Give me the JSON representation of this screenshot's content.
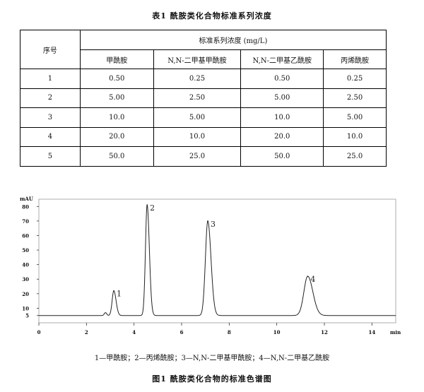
{
  "table": {
    "title": "表1   酰胺类化合物标准系列浓度",
    "group_header": "标准系列浓度 (mg/L)",
    "index_header": "序号",
    "columns": [
      "甲酰胺",
      "N,N-二甲基甲酰胺",
      "N,N-二甲基乙酰胺",
      "丙烯酰胺"
    ],
    "rows": [
      {
        "idx": "1",
        "cells": [
          "0.50",
          "0.25",
          "0.50",
          "0.25"
        ]
      },
      {
        "idx": "2",
        "cells": [
          "5.00",
          "2.50",
          "5.00",
          "2.50"
        ]
      },
      {
        "idx": "3",
        "cells": [
          "10.0",
          "5.00",
          "10.0",
          "5.00"
        ]
      },
      {
        "idx": "4",
        "cells": [
          "20.0",
          "10.0",
          "20.0",
          "10.0"
        ]
      },
      {
        "idx": "5",
        "cells": [
          "50.0",
          "25.0",
          "50.0",
          "25.0"
        ]
      }
    ]
  },
  "chart_data": {
    "type": "line",
    "title": "",
    "ylabel": "mAU",
    "xlabel": "min",
    "xlim": [
      0,
      15
    ],
    "ylim": [
      0,
      85
    ],
    "x_ticks": [
      "0",
      "2",
      "4",
      "6",
      "8",
      "10",
      "12",
      "14"
    ],
    "x_tick_values": [
      0,
      2,
      4,
      6,
      8,
      10,
      12,
      14
    ],
    "y_ticks": [
      "5",
      "10",
      "20",
      "30",
      "40",
      "50",
      "60",
      "70",
      "80"
    ],
    "y_tick_values": [
      5,
      10,
      20,
      30,
      40,
      50,
      60,
      70,
      80
    ],
    "baseline": 5,
    "peaks": [
      {
        "label": "1",
        "time": 3.15,
        "height": 22
      },
      {
        "label": "2",
        "time": 4.55,
        "height": 81
      },
      {
        "label": "3",
        "time": 7.1,
        "height": 70
      },
      {
        "label": "4",
        "time": 11.3,
        "height": 32
      }
    ],
    "minor_peaks": [
      {
        "time": 2.8,
        "height": 7
      }
    ]
  },
  "legend_text": "1—甲酰胺；2—丙烯酰胺；3—N,N-二甲基甲酰胺；4—N,N-二甲基乙酰胺",
  "figure_caption": "图1   酰胺类化合物的标准色谱图"
}
